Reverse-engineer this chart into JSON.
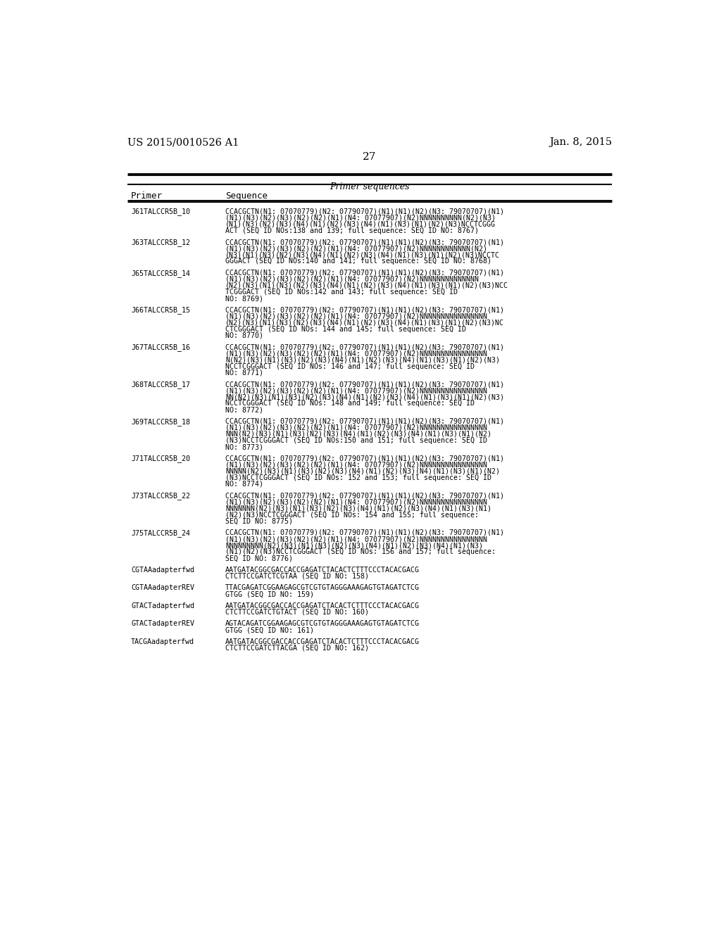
{
  "header_left": "US 2015/0010526 A1",
  "header_right": "Jan. 8, 2015",
  "page_number": "27",
  "table_title": "Primer sequences",
  "col1_header": "Primer",
  "col2_header": "Sequence",
  "background_color": "#ffffff",
  "text_color": "#000000",
  "rows": [
    {
      "primer": "J61TALCCR5B_10",
      "sequence": "CCACGCTN(N1: 07070779)(N2: 07790707)(N1)(N1)(N2)(N3: 79070707)(N1)\n(N1)(N3)(N2)(N3)(N2)(N2)(N1)(N4: 07077907)(N2)NNNNNNNNNN(N2)(N3)\n(N1)(N3)(N2)(N3)(N4)(N1)(N2)(N3)(N4)(N1)(N3)(N1)(N2)(N3)NCCTCGGG\nACT (SEQ ID NOs:138 and 139; full sequence: SEQ ID NO: 8767)"
    },
    {
      "primer": "J63TALCCR5B_12",
      "sequence": "CCACGCTN(N1: 07070779)(N2: 07790707)(N1)(N1)(N2)(N3: 79070707)(N1)\n(N1)(N3)(N2)(N3)(N2)(N2)(N1)(N4: 07077907)(N2)NNNNNNNNNNNN(N2)\n(N3)(N1)(N3)(N2)(N3)(N4)(N1)(N2)(N3)(N4)(N1)(N3)(N1)(N2)(N3)NCCTC\nGGGACT (SEQ ID NOs:140 and 141; full sequence: SEQ ID NO: 8768)"
    },
    {
      "primer": "J65TALCCR5B_14",
      "sequence": "CCACGCTN(N1: 07070779)(N2: 07790707)(N1)(N1)(N2)(N3: 79070707)(N1)\n(N1)(N3)(N2)(N3)(N2)(N2)(N1)(N4: 07077907)(N2)NNNNNNNNNNNNNN\n(N2)(N3)(N1)(N3)(N2)(N3)(N4)(N1)(N2)(N3)(N4)(N1)(N3)(N1)(N2)(N3)NCC\nTCGGGACT (SEQ ID NOs:142 and 143; full sequence: SEQ ID\nNO: 8769)"
    },
    {
      "primer": "J66TALCCR5B_15",
      "sequence": "CCACGCTN(N1: 07070779)(N2: 07790707)(N1)(N1)(N2)(N3: 79070707)(N1)\n(N1)(N3)(N2)(N3)(N2)(N2)(N1)(N4: 07077907)(N2)NNNNNNNNNNNNNNNN\n(N2)(N3)(N1)(N3)(N2)(N3)(N4)(N1)(N2)(N3)(N4)(N1)(N3)(N1)(N2)(N3)NC\nCTCGGGACT (SEQ ID NOs: 144 and 145; full sequence: SEQ ID\nNO: 8770)"
    },
    {
      "primer": "J67TALCCR5B_16",
      "sequence": "CCACGCTN(N1: 07070779)(N2: 07790707)(N1)(N1)(N2)(N3: 79070707)(N1)\n(N1)(N3)(N2)(N3)(N2)(N2)(N1)(N4: 07077907)(N2)NNNNNNNNNNNNNNNN\nN(N2)(N3)(N1)(N3)(N2)(N3)(N4)(N1)(N2)(N3)(N4)(N1)(N3)(N1)(N2)(N3)\nNCCTCGGGACT (SEQ ID NOs: 146 and 147; full sequence: SEQ ID\nNO: 8771)"
    },
    {
      "primer": "J68TALCCR5B_17",
      "sequence": "CCACGCTN(N1: 07070779)(N2: 07790707)(N1)(N1)(N2)(N3: 79070707)(N1)\n(N1)(N3)(N2)(N3)(N2)(N2)(N1)(N4: 07077907)(N2)NNNNNNNNNNNNNNNN\nNN(N2)(N3)(N1)(N3)(N2)(N3)(N4)(N1)(N2)(N3)(N4)(N1)(N3)(N1)(N2)(N3)\nNCCTCGGGACT (SEQ ID NOs: 148 and 149; full sequence: SEQ ID\nNO: 8772)"
    },
    {
      "primer": "J69TALCCR5B_18",
      "sequence": "CCACGCTN(N1: 07070779)(N2: 07790707)(N1)(N1)(N2)(N3: 79070707)(N1)\n(N1)(N3)(N2)(N3)(N2)(N2)(N1)(N4: 07077907)(N2)NNNNNNNNNNNNNNNN\nNNN(N2)(N3)(N1)(N3)(N2)(N3)(N4)(N1)(N2)(N3)(N4)(N1)(N3)(N1)(N2)\n(N3)NCCTCGGGACT (SEQ ID NOs:150 and 151; full sequence: SEQ ID\nNO: 8773)"
    },
    {
      "primer": "J71TALCCR5B_20",
      "sequence": "CCACGCTN(N1: 07070779)(N2: 07790707)(N1)(N1)(N2)(N3: 79070707)(N1)\n(N1)(N3)(N2)(N3)(N2)(N2)(N1)(N4: 07077907)(N2)NNNNNNNNNNNNNNNN\nNNNNN(N2)(N3)(N1)(N3)(N2)(N3)(N4)(N1)(N2)(N3)(N4)(N1)(N3)(N1)(N2)\n(N3)NCCTCGGGACT (SEQ ID NOs: 152 and 153; full sequence: SEQ ID\nNO: 8774)"
    },
    {
      "primer": "J73TALCCR5B_22",
      "sequence": "CCACGCTN(N1: 07070779)(N2: 07790707)(N1)(N1)(N2)(N3: 79070707)(N1)\n(N1)(N3)(N2)(N3)(N2)(N2)(N1)(N4: 07077907)(N2)NNNNNNNNNNNNNNNN\nNNNNNNN(N2)(N3)(N1)(N3)(N2)(N3)(N4)(N1)(N2)(N3)(N4)(N1)(N3)(N1)\n(N2)(N3)NCCTCGGGACT (SEQ ID NOs: 154 and 155; full sequence:\nSEQ ID NO: 8775)"
    },
    {
      "primer": "J75TALCCR5B_24",
      "sequence": "CCACGCTN(N1: 07070779)(N2: 07790707)(N1)(N1)(N2)(N3: 79070707)(N1)\n(N1)(N3)(N2)(N3)(N2)(N2)(N1)(N4: 07077907)(N2)NNNNNNNNNNNNNNNN\nNNNNNNNNN(N2)(N3)(N1)(N3)(N2)(N3)(N4)(N1)(N2)(N3)(N4)(N1)(N3)\n(N1)(N2)(N3)NCCTCGGGACT (SEQ ID NOs: 156 and 157; full sequence:\nSEQ ID NO: 8776)"
    },
    {
      "primer": "CGTAAadapterfwd",
      "sequence": "AATGATACGGCGACCACCGAGATCTACACTCTTTCCCTACACGACG\nCTCTTCCGATCTCGTAA (SEQ ID NO: 158)"
    },
    {
      "primer": "CGTAAadapterREV",
      "sequence": "TTACGAGATCGGAAGAGCGTCGTGTAGGGAAAGAGTGTAGATCTCG\nGTGG (SEQ ID NO: 159)"
    },
    {
      "primer": "GTACTadapterfwd",
      "sequence": "AATGATACGGCGACCACCGAGATCTACACTCTTTCCCTACACGACG\nCTCTTCCGATCTGTACT (SEQ ID NO: 160)"
    },
    {
      "primer": "GTACTadapterREV",
      "sequence": "AGTACAGATCGGAAGAGCGTCGTGTAGGGAAAGAGTGTAGATCTCG\nGTGG (SEQ ID NO: 161)"
    },
    {
      "primer": "TACGAadapterfwd",
      "sequence": "AATGATACGGCGACCACCGAGATCTACACTCTTTCCCTACACGACG\nCTCTTCCGATCTTACGA (SEQ ID NO: 162)"
    }
  ]
}
